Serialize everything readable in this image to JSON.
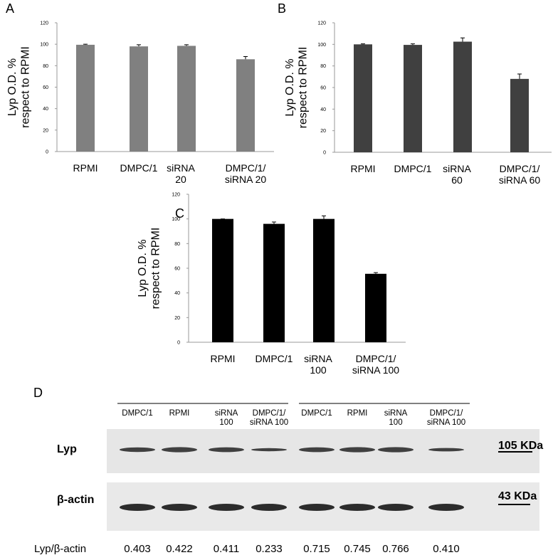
{
  "chart_data": [
    {
      "type": "bar",
      "panel": "A",
      "y_label": "Lyp O.D. %\nrespect to RPMI",
      "categories": [
        "RPMI",
        "DMPC/1",
        "siRNA\n20",
        "DMPC/1/\nsiRNA 20"
      ],
      "values": [
        99.5,
        98,
        98.5,
        86
      ],
      "errors": [
        0.5,
        1.5,
        1,
        2.5
      ],
      "color": "#808080",
      "ylim": [
        0,
        120
      ],
      "yticks": [
        0,
        20,
        40,
        60,
        80,
        100,
        120
      ]
    },
    {
      "type": "bar",
      "panel": "B",
      "y_label": "Lyp O.D. %\nrespect to RPMI",
      "categories": [
        "RPMI",
        "DMPC/1",
        "siRNA\n60",
        "DMPC/1/\nsiRNA 60"
      ],
      "values": [
        100,
        99.5,
        102.5,
        68
      ],
      "errors": [
        0.5,
        1,
        3.5,
        4.5
      ],
      "color": "#404040",
      "ylim": [
        0,
        120
      ],
      "yticks": [
        0,
        20,
        40,
        60,
        80,
        100,
        120
      ]
    },
    {
      "type": "bar",
      "panel": "C",
      "y_label": "Lyp O.D. %\nrespect to RPMI",
      "categories": [
        "RPMI",
        "DMPC/1",
        "siRNA\n100",
        "DMPC/1/\nsiRNA 100"
      ],
      "values": [
        100,
        96,
        100,
        55.5
      ],
      "errors": [
        0,
        1.5,
        2.5,
        1
      ],
      "color": "#000000",
      "ylim": [
        0,
        120
      ],
      "yticks": [
        0,
        20,
        40,
        60,
        80,
        100,
        120
      ]
    }
  ],
  "blot": {
    "panel": "D",
    "lanes": [
      "DMPC/1",
      "RPMI",
      "siRNA\n100",
      "DMPC/1/\nsiRNA 100",
      "DMPC/1",
      "RPMI",
      "siRNA\n100",
      "DMPC/1/\nsiRNA 100"
    ],
    "rows": [
      "Lyp",
      "β-actin"
    ],
    "markers": [
      "105 KDa",
      "43 KDa"
    ],
    "ratio_label": "Lyp/β-actin",
    "ratios": [
      "0.403",
      "0.422",
      "0.411",
      "0.233",
      "0.715",
      "0.745",
      "0.766",
      "0.410"
    ]
  }
}
